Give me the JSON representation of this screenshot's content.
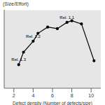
{
  "chart_data": {
    "type": "line",
    "y_label": "(Size/Effort)",
    "x_label": "Defect density (Number of defects/size)",
    "x": [
      2.5,
      3.0,
      4.0,
      4.5,
      5.5,
      6.5,
      7.5,
      8.0,
      9.0,
      10.3
    ],
    "values": [
      3.0,
      4.6,
      6.0,
      7.0,
      7.8,
      7.6,
      8.4,
      8.6,
      8.2,
      3.5
    ],
    "color": "#000000",
    "marker": "circle",
    "line_style": "solid",
    "xlim": [
      1,
      11
    ],
    "xticks": [
      2,
      4,
      6,
      8,
      10
    ],
    "ylim": [
      0,
      10
    ],
    "yticks": [
      0,
      2,
      4,
      6,
      8,
      10
    ],
    "grid": true,
    "tick_labels": "x",
    "annotations": [
      {
        "text": "Rel. 1.3",
        "x": 2.5,
        "y": 3.0
      },
      {
        "text": "Rel. 1.2",
        "x": 4.0,
        "y": 6.0
      },
      {
        "text": "Rel. 1.1",
        "x": 7.5,
        "y": 8.4
      }
    ]
  }
}
